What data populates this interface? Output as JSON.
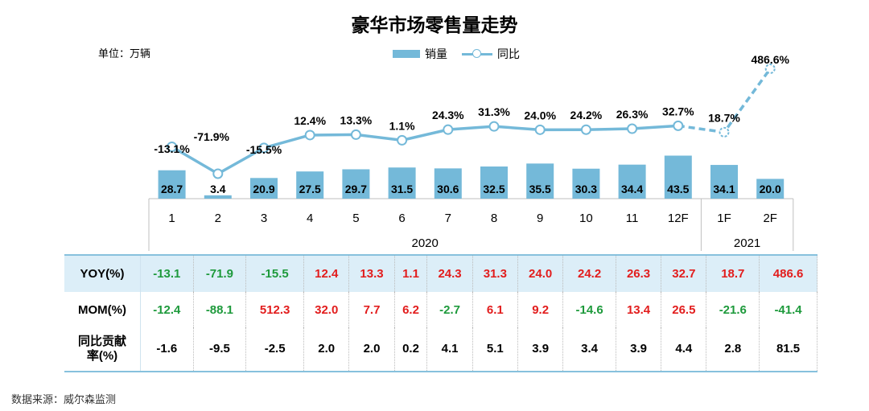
{
  "title": "豪华市场零售量走势",
  "unit": "单位：万辆",
  "source": "数据来源：威尔森监测",
  "legend": {
    "bar": "销量",
    "line": "同比"
  },
  "colors": {
    "bar": "#74b9d9",
    "line": "#74b9d9",
    "positive": "#e21d1d",
    "negative": "#1e9a3c"
  },
  "chart_data": {
    "type": "bar",
    "categories": [
      "1",
      "2",
      "3",
      "4",
      "5",
      "6",
      "7",
      "8",
      "9",
      "10",
      "11",
      "12F",
      "1F",
      "2F"
    ],
    "years": [
      {
        "label": "2020",
        "span": 12
      },
      {
        "label": "2021",
        "span": 2
      }
    ],
    "series": [
      {
        "name": "销量",
        "type": "bar",
        "values": [
          28.7,
          3.4,
          20.9,
          27.5,
          29.7,
          31.5,
          30.6,
          32.5,
          35.5,
          30.3,
          34.4,
          43.5,
          34.1,
          20.0
        ],
        "labels": [
          "28.7",
          "3.4",
          "20.9",
          "27.5",
          "29.7",
          "31.5",
          "30.6",
          "32.5",
          "35.5",
          "30.3",
          "34.4",
          "43.5",
          "34.1",
          "20.0"
        ]
      },
      {
        "name": "同比",
        "type": "line",
        "dashed_from_index": 11,
        "values": [
          -13.1,
          -71.9,
          -15.5,
          12.4,
          13.3,
          1.1,
          24.3,
          31.3,
          24.0,
          24.2,
          26.3,
          32.7,
          18.7,
          486.6
        ],
        "labels": [
          "-13.1%",
          "-71.9%",
          "-15.5%",
          "12.4%",
          "13.3%",
          "1.1%",
          "24.3%",
          "31.3%",
          "24.0%",
          "24.2%",
          "26.3%",
          "32.7%",
          "18.7%",
          "486.6%"
        ]
      }
    ]
  },
  "table": {
    "rows": [
      {
        "header": "YOY(%)",
        "values": [
          "-13.1",
          "-71.9",
          "-15.5",
          "12.4",
          "13.3",
          "1.1",
          "24.3",
          "31.3",
          "24.0",
          "24.2",
          "26.3",
          "32.7",
          "18.7",
          "486.6"
        ],
        "colored": true
      },
      {
        "header": "MOM(%)",
        "values": [
          "-12.4",
          "-88.1",
          "512.3",
          "32.0",
          "7.7",
          "6.2",
          "-2.7",
          "6.1",
          "9.2",
          "-14.6",
          "13.4",
          "26.5",
          "-21.6",
          "-41.4"
        ],
        "colored": true
      },
      {
        "header_line1": "同比贡献",
        "header_line2": "率(%)",
        "values": [
          "-1.6",
          "-9.5",
          "-2.5",
          "2.0",
          "2.0",
          "0.2",
          "4.1",
          "5.1",
          "3.9",
          "3.4",
          "3.9",
          "4.4",
          "2.8",
          "81.5"
        ],
        "colored": false
      }
    ]
  }
}
